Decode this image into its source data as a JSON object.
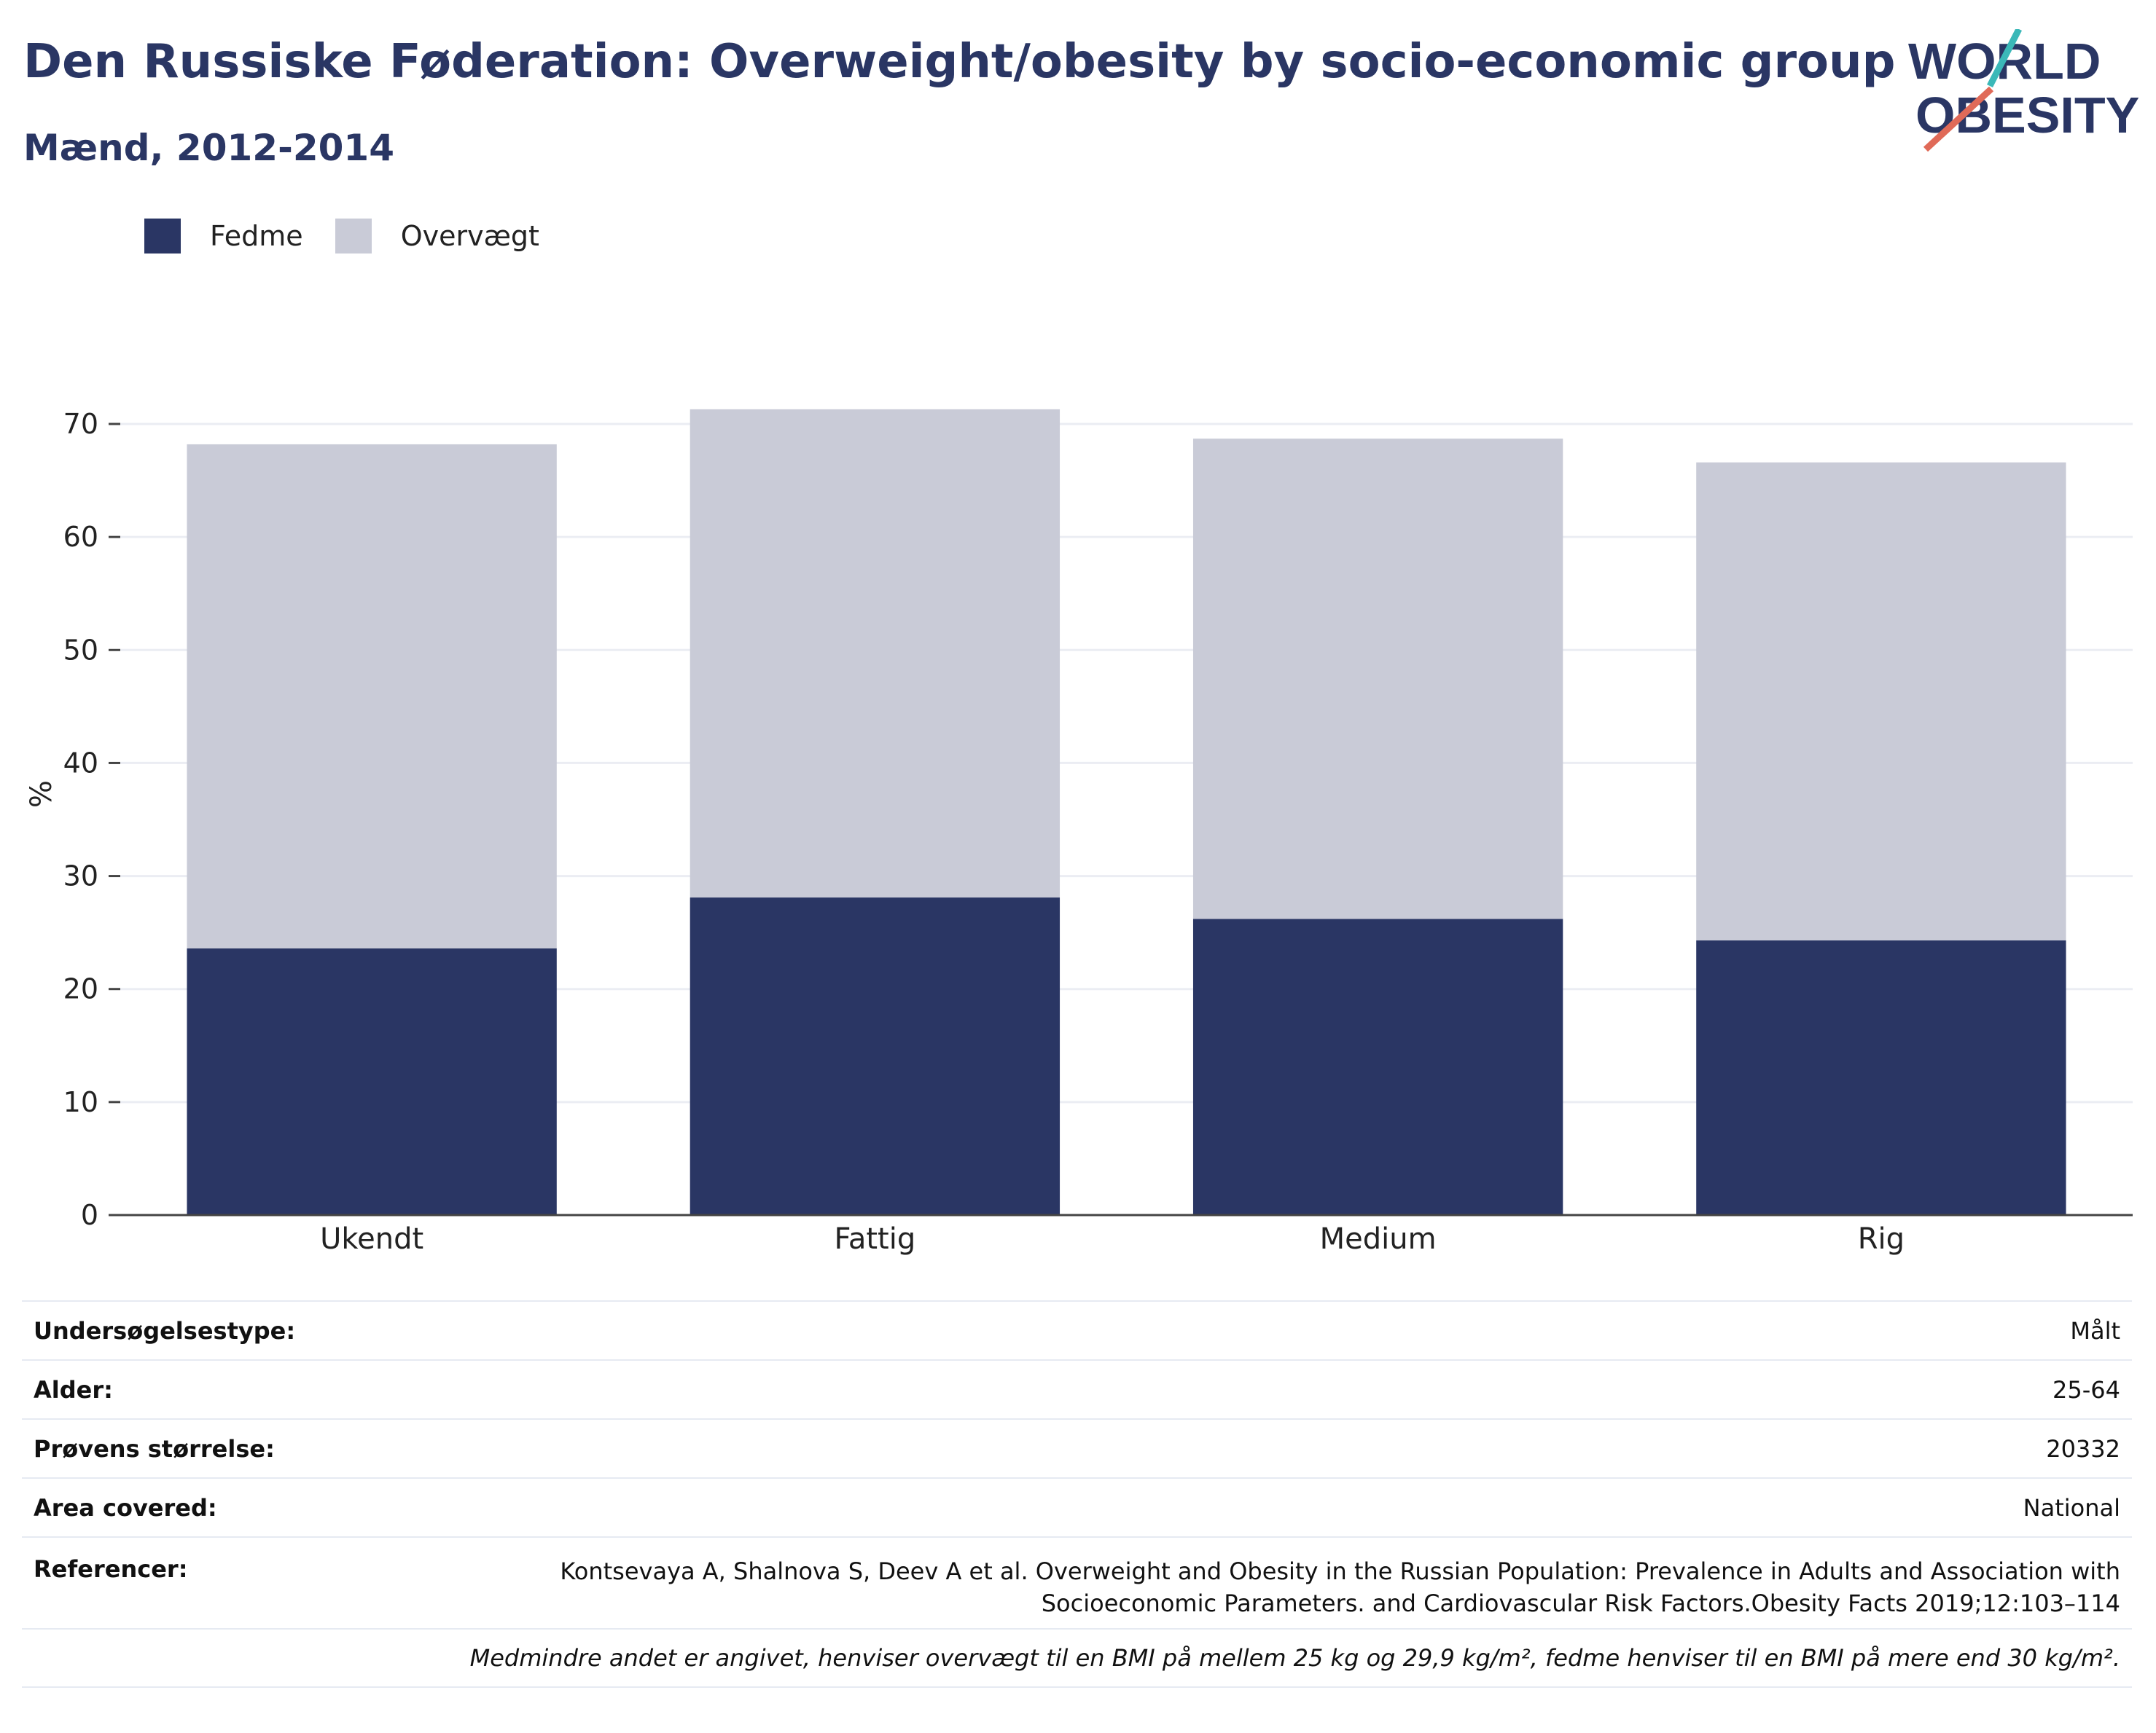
{
  "header": {
    "title": "Den Russiske Føderation: Overweight/obesity by socio-economic group",
    "subtitle": "Mænd, 2012-2014"
  },
  "logo": {
    "line1": "WORLD",
    "line2": "OBESITY"
  },
  "colors": {
    "fedme": "#2a3664",
    "overvaegt": "#c9cbd7",
    "text": "#2a3664"
  },
  "legend": {
    "items": [
      {
        "label": "Fedme"
      },
      {
        "label": "Overvægt"
      }
    ]
  },
  "chart_data": {
    "type": "bar",
    "stacked": true,
    "categories": [
      "Ukendt",
      "Fattig",
      "Medium",
      "Rig"
    ],
    "series": [
      {
        "name": "Fedme",
        "values": [
          23.6,
          28.1,
          26.2,
          24.3
        ]
      },
      {
        "name": "Overvægt",
        "values": [
          44.6,
          43.2,
          42.5,
          42.3
        ]
      }
    ],
    "ylabel": "%",
    "ylim": [
      0,
      70
    ],
    "yticks": [
      0,
      10,
      20,
      30,
      40,
      50,
      60,
      70
    ],
    "grid": true,
    "legend_position": "top-left"
  },
  "meta": {
    "rows": [
      {
        "key": "Undersøgelsestype:",
        "value": "Målt"
      },
      {
        "key": "Alder:",
        "value": "25-64"
      },
      {
        "key": "Prøvens størrelse:",
        "value": "20332"
      },
      {
        "key": "Area covered:",
        "value": "National"
      },
      {
        "key": "Referencer:",
        "value_line1": "Kontsevaya A, Shalnova S, Deev A et al. Overweight and Obesity in the Russian Population: Prevalence in Adults and Association with",
        "value_line2": "Socioeconomic Parameters. and Cardiovascular Risk Factors.Obesity Facts 2019;12:103–114"
      }
    ],
    "note": "Medmindre andet er angivet, henviser overvægt til en BMI på mellem 25 kg og 29,9 kg/m², fedme henviser til en BMI på mere end 30 kg/m²."
  }
}
